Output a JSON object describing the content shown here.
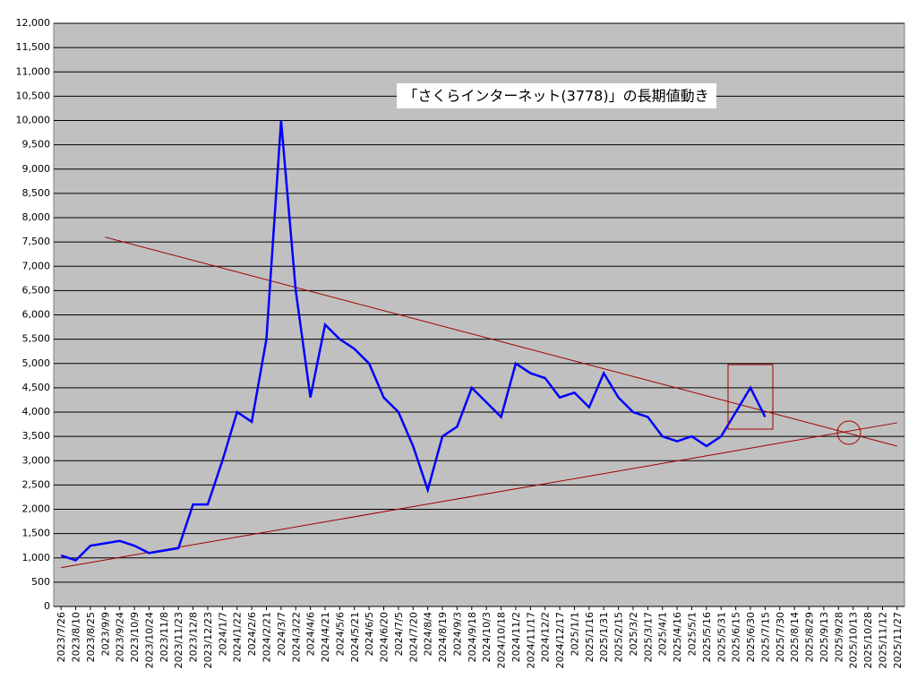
{
  "chart_data": {
    "type": "line",
    "title": "「さくらインターネット(3778)」の長期値動き",
    "categories": [
      "2023/7/26",
      "2023/8/10",
      "2023/8/25",
      "2023/9/9",
      "2023/9/24",
      "2023/10/9",
      "2023/10/24",
      "2023/11/8",
      "2023/11/23",
      "2023/12/8",
      "2023/12/23",
      "2024/1/7",
      "2024/1/22",
      "2024/2/6",
      "2024/2/21",
      "2024/3/7",
      "2024/3/22",
      "2024/4/6",
      "2024/4/21",
      "2024/5/6",
      "2024/5/21",
      "2024/6/5",
      "2024/6/20",
      "2024/7/5",
      "2024/7/20",
      "2024/8/4",
      "2024/8/19",
      "2024/9/3",
      "2024/9/18",
      "2024/10/3",
      "2024/10/18",
      "2024/11/2",
      "2024/11/17",
      "2024/12/2",
      "2024/12/17",
      "2025/1/1",
      "2025/1/16",
      "2025/1/31",
      "2025/2/15",
      "2025/3/2",
      "2025/3/17",
      "2025/4/1",
      "2025/4/16",
      "2025/5/1",
      "2025/5/16",
      "2025/5/31",
      "2025/6/15",
      "2025/6/30",
      "2025/7/15",
      "2025/7/30",
      "2025/8/14",
      "2025/8/29",
      "2025/9/13",
      "2025/9/28",
      "2025/10/13",
      "2025/10/28",
      "2025/11/12",
      "2025/11/27"
    ],
    "series": [
      {
        "color": "#0000ff",
        "values": [
          1050,
          950,
          1250,
          1300,
          1350,
          1250,
          1100,
          1150,
          1200,
          2100,
          2100,
          3000,
          4000,
          3800,
          5500,
          10000,
          6500,
          4300,
          5800,
          5500,
          5300,
          5000,
          4300,
          4000,
          3300,
          2400,
          3500,
          3700,
          4500,
          4200,
          3900,
          5000,
          4800,
          4700,
          4300,
          4400,
          4100,
          4800,
          4300,
          4000,
          3900,
          3500,
          3400,
          3500,
          3300,
          3500,
          4000,
          4500,
          3900,
          null,
          null,
          null,
          null,
          null,
          null,
          null,
          null,
          null
        ]
      }
    ],
    "trendlines": [
      {
        "color": "#a00000",
        "from": {
          "x": "2023/9/9",
          "value": 7600
        },
        "to": {
          "x": "2025/11/27",
          "value": 3300
        }
      },
      {
        "color": "#a00000",
        "from": {
          "x": "2023/7/26",
          "value": 800
        },
        "to": {
          "x": "2025/11/27",
          "value": 3780
        }
      }
    ],
    "ylim": [
      0,
      12000
    ],
    "yticks": [
      0,
      500,
      {
        "value": 1000,
        "label": "1,000"
      },
      {
        "value": 1500,
        "label": "1,500"
      },
      {
        "value": 2000,
        "label": "2,000"
      },
      {
        "value": 2500,
        "label": "2,500"
      },
      {
        "value": 3000,
        "label": "3,000"
      },
      {
        "value": 3500,
        "label": "3,500"
      },
      {
        "value": 4000,
        "label": "4,000"
      },
      {
        "value": 4500,
        "label": "4,500"
      },
      {
        "value": 5000,
        "label": "5,000"
      },
      {
        "value": 5500,
        "label": "5,500"
      },
      {
        "value": 6000,
        "label": "6,000"
      },
      {
        "value": 6500,
        "label": "6,500"
      },
      {
        "value": 7000,
        "label": "7,000"
      },
      {
        "value": 7500,
        "label": "7,500"
      },
      {
        "value": 8000,
        "label": "8,000"
      },
      {
        "value": 8500,
        "label": "8,500"
      },
      {
        "value": 9000,
        "label": "9,000"
      },
      {
        "value": 9500,
        "label": "9,500"
      },
      {
        "value": 10000,
        "label": "10,000"
      },
      {
        "value": 10500,
        "label": "10,500"
      },
      {
        "value": 11000,
        "label": "11,000"
      },
      {
        "value": 11500,
        "label": "11,500"
      },
      {
        "value": 12000,
        "label": "12,000"
      }
    ],
    "grid": true
  }
}
